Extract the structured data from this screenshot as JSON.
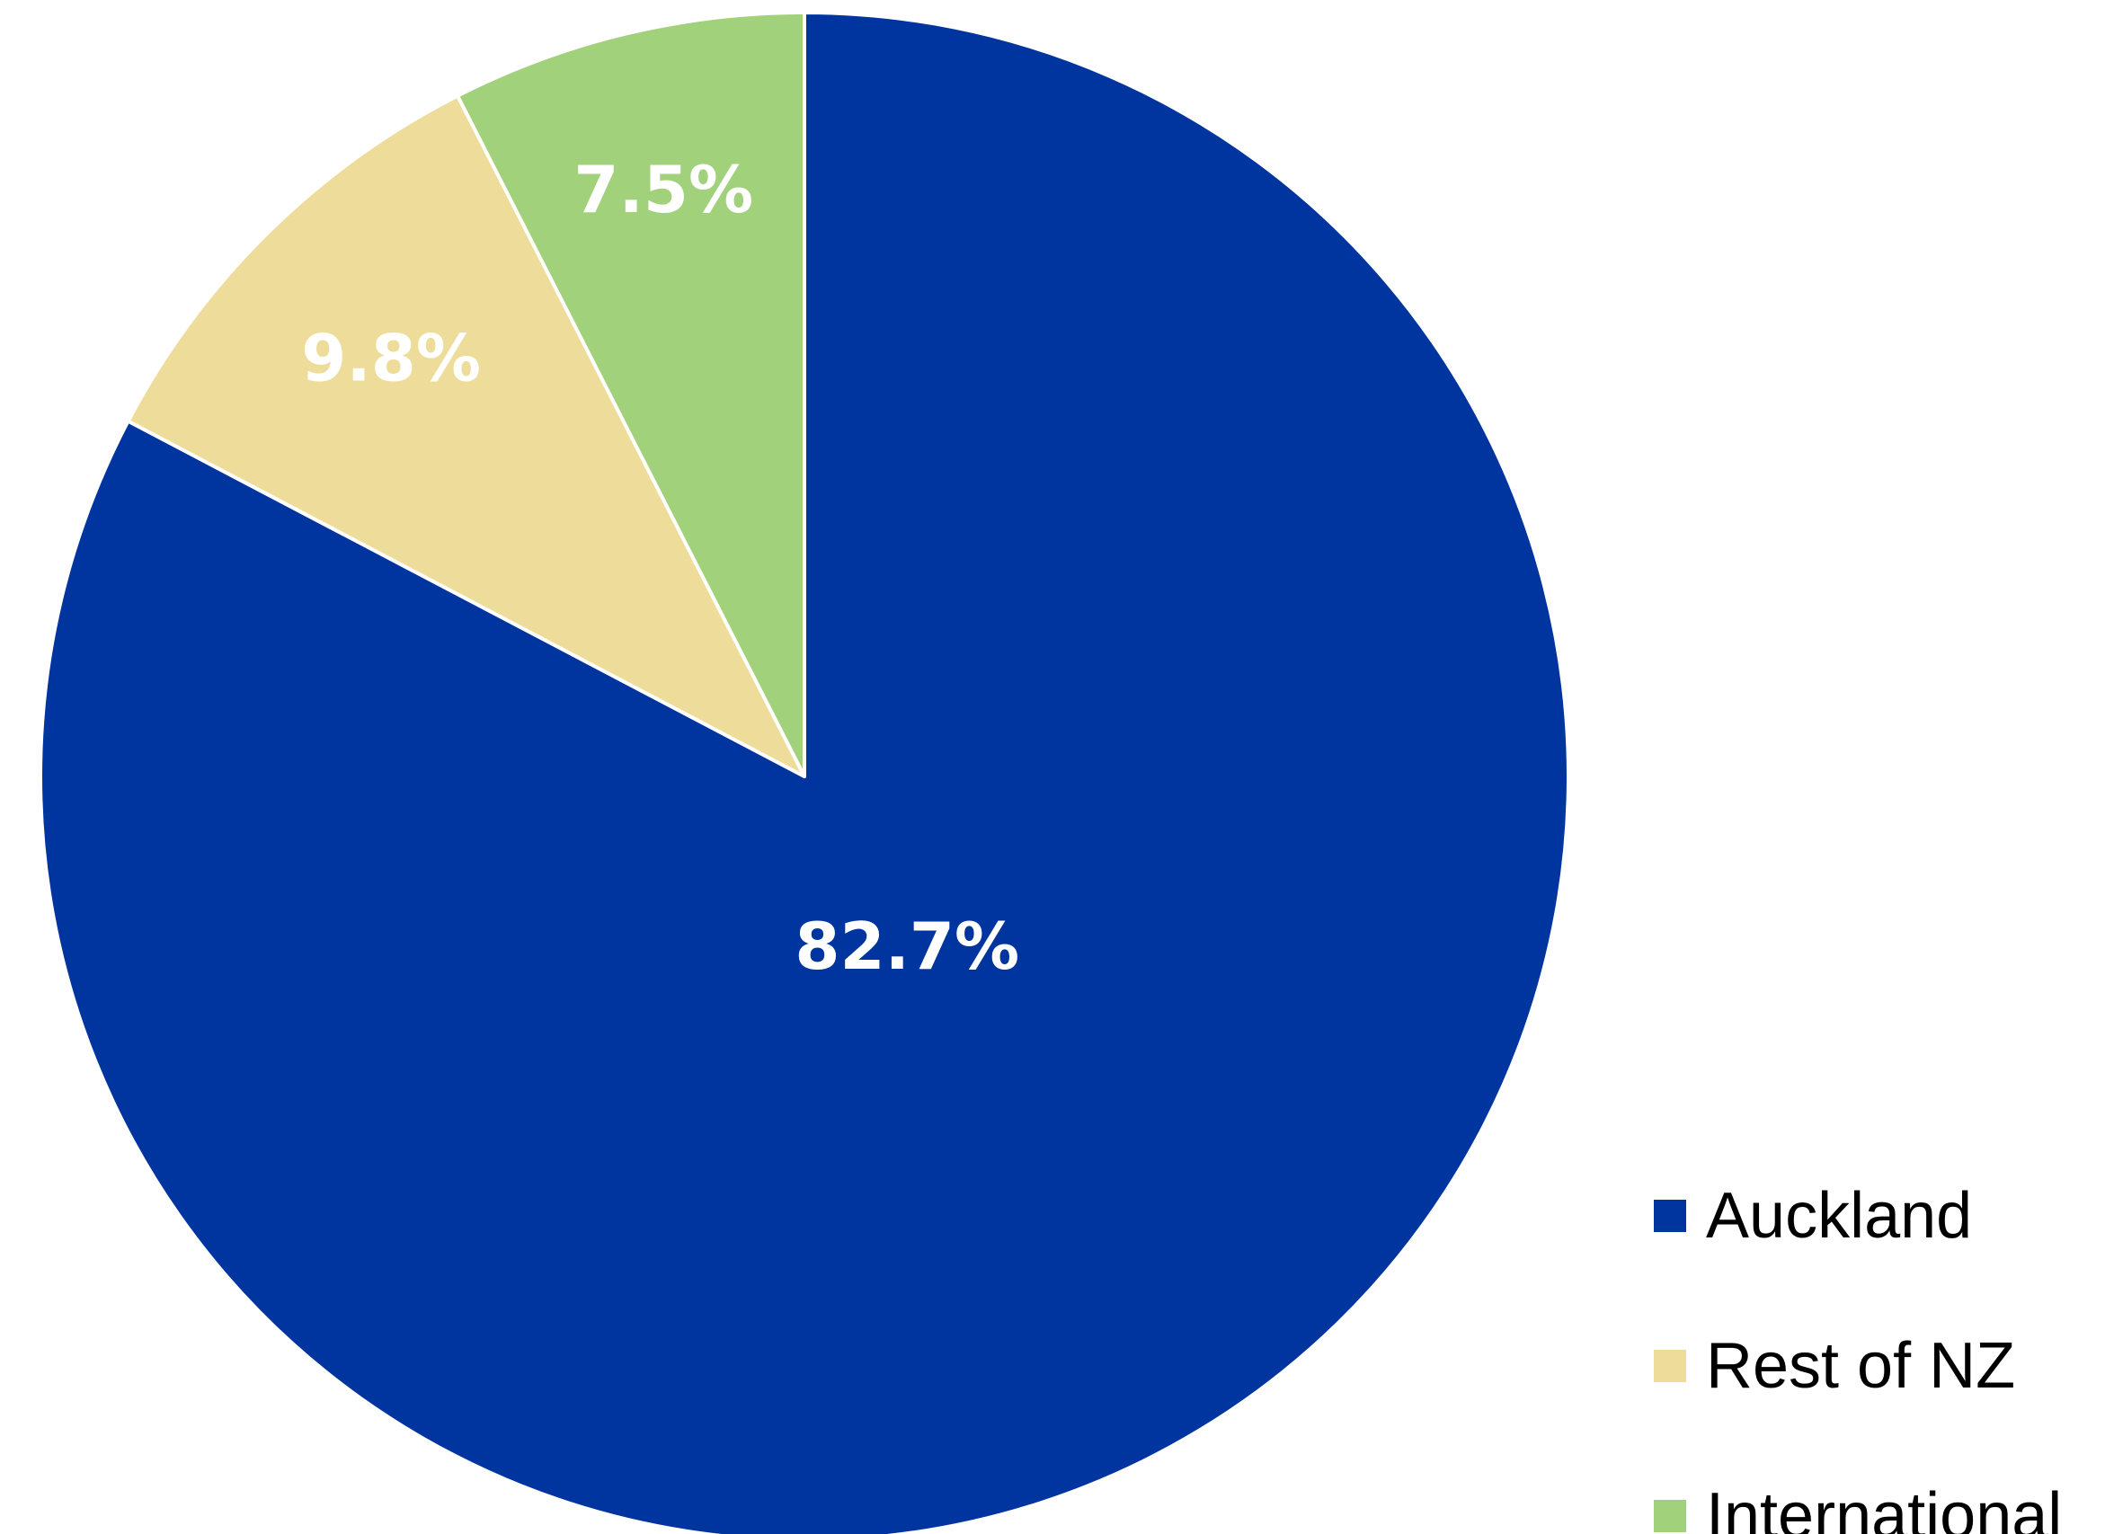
{
  "chart_data": {
    "type": "pie",
    "start_angle": "12 o'clock",
    "direction": "clockwise",
    "slices": [
      {
        "name": "Auckland",
        "value": 82.7,
        "label": "82.7%",
        "color": "#0035a0"
      },
      {
        "name": "Rest of NZ",
        "value": 9.8,
        "label": "9.8%",
        "color": "#eedc9a"
      },
      {
        "name": "International",
        "value": 7.5,
        "label": "7.5%",
        "color": "#a1d17a"
      }
    ],
    "legend": {
      "placement": "bottom-right",
      "entries": [
        "Auckland",
        "Rest of NZ",
        "International"
      ]
    },
    "slice_border_color": "#ffffff",
    "label_color": "#ffffff"
  }
}
